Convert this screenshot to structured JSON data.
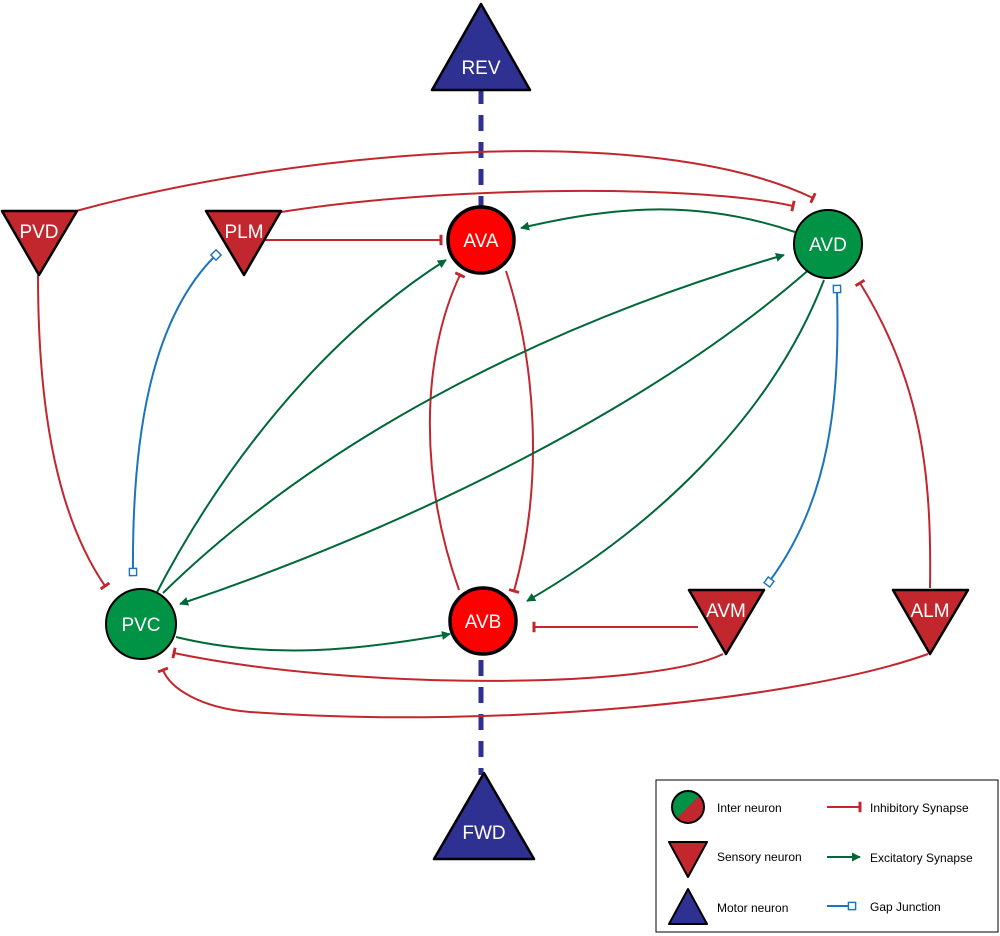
{
  "colors": {
    "inter": "#009245",
    "inter_strong": "#ff0000",
    "sensory": "#c1272d",
    "motor": "#2e3192",
    "inhibitory": "#c1272d",
    "excitatory": "#006837",
    "gap": "#1b75bc"
  },
  "nodes": {
    "rev": {
      "label": "REV",
      "kind": "motor"
    },
    "fwd": {
      "label": "FWD",
      "kind": "motor"
    },
    "pvd": {
      "label": "PVD",
      "kind": "sensory"
    },
    "plm": {
      "label": "PLM",
      "kind": "sensory"
    },
    "avm": {
      "label": "AVM",
      "kind": "sensory"
    },
    "alm": {
      "label": "ALM",
      "kind": "sensory"
    },
    "ava": {
      "label": "AVA",
      "kind": "inter"
    },
    "avb": {
      "label": "AVB",
      "kind": "inter"
    },
    "avd": {
      "label": "AVD",
      "kind": "inter"
    },
    "pvc": {
      "label": "PVC",
      "kind": "inter"
    }
  },
  "edges": [
    {
      "from": "PVD",
      "to": "AVD",
      "type": "inhibitory"
    },
    {
      "from": "PVD",
      "to": "PVC",
      "type": "inhibitory"
    },
    {
      "from": "PLM",
      "to": "AVD",
      "type": "inhibitory"
    },
    {
      "from": "PLM",
      "to": "AVA",
      "type": "inhibitory"
    },
    {
      "from": "PLM",
      "to": "PVC",
      "type": "gap"
    },
    {
      "from": "AVD",
      "to": "AVA",
      "type": "excitatory"
    },
    {
      "from": "AVD",
      "to": "PVC",
      "type": "excitatory"
    },
    {
      "from": "AVD",
      "to": "AVB",
      "type": "excitatory"
    },
    {
      "from": "AVD",
      "to": "AVM",
      "type": "gap"
    },
    {
      "from": "ALM",
      "to": "AVD",
      "type": "inhibitory"
    },
    {
      "from": "ALM",
      "to": "PVC",
      "type": "inhibitory"
    },
    {
      "from": "AVM",
      "to": "AVB",
      "type": "inhibitory"
    },
    {
      "from": "AVM",
      "to": "PVC",
      "type": "inhibitory"
    },
    {
      "from": "PVC",
      "to": "AVA",
      "type": "excitatory"
    },
    {
      "from": "PVC",
      "to": "AVD",
      "type": "excitatory"
    },
    {
      "from": "PVC",
      "to": "AVB",
      "type": "excitatory"
    },
    {
      "from": "AVA",
      "to": "AVB",
      "type": "inhibitory"
    },
    {
      "from": "AVB",
      "to": "AVA",
      "type": "inhibitory"
    },
    {
      "from": "AVA",
      "to": "REV",
      "type": "motor"
    },
    {
      "from": "AVB",
      "to": "FWD",
      "type": "motor"
    }
  ],
  "legend": {
    "inter": "Inter neuron",
    "sensory": "Sensory neuron",
    "motor": "Motor neuron",
    "inhibitory": "Inhibitory Synapse",
    "excitatory": "Excitatory Synapse",
    "gap": "Gap Junction"
  }
}
